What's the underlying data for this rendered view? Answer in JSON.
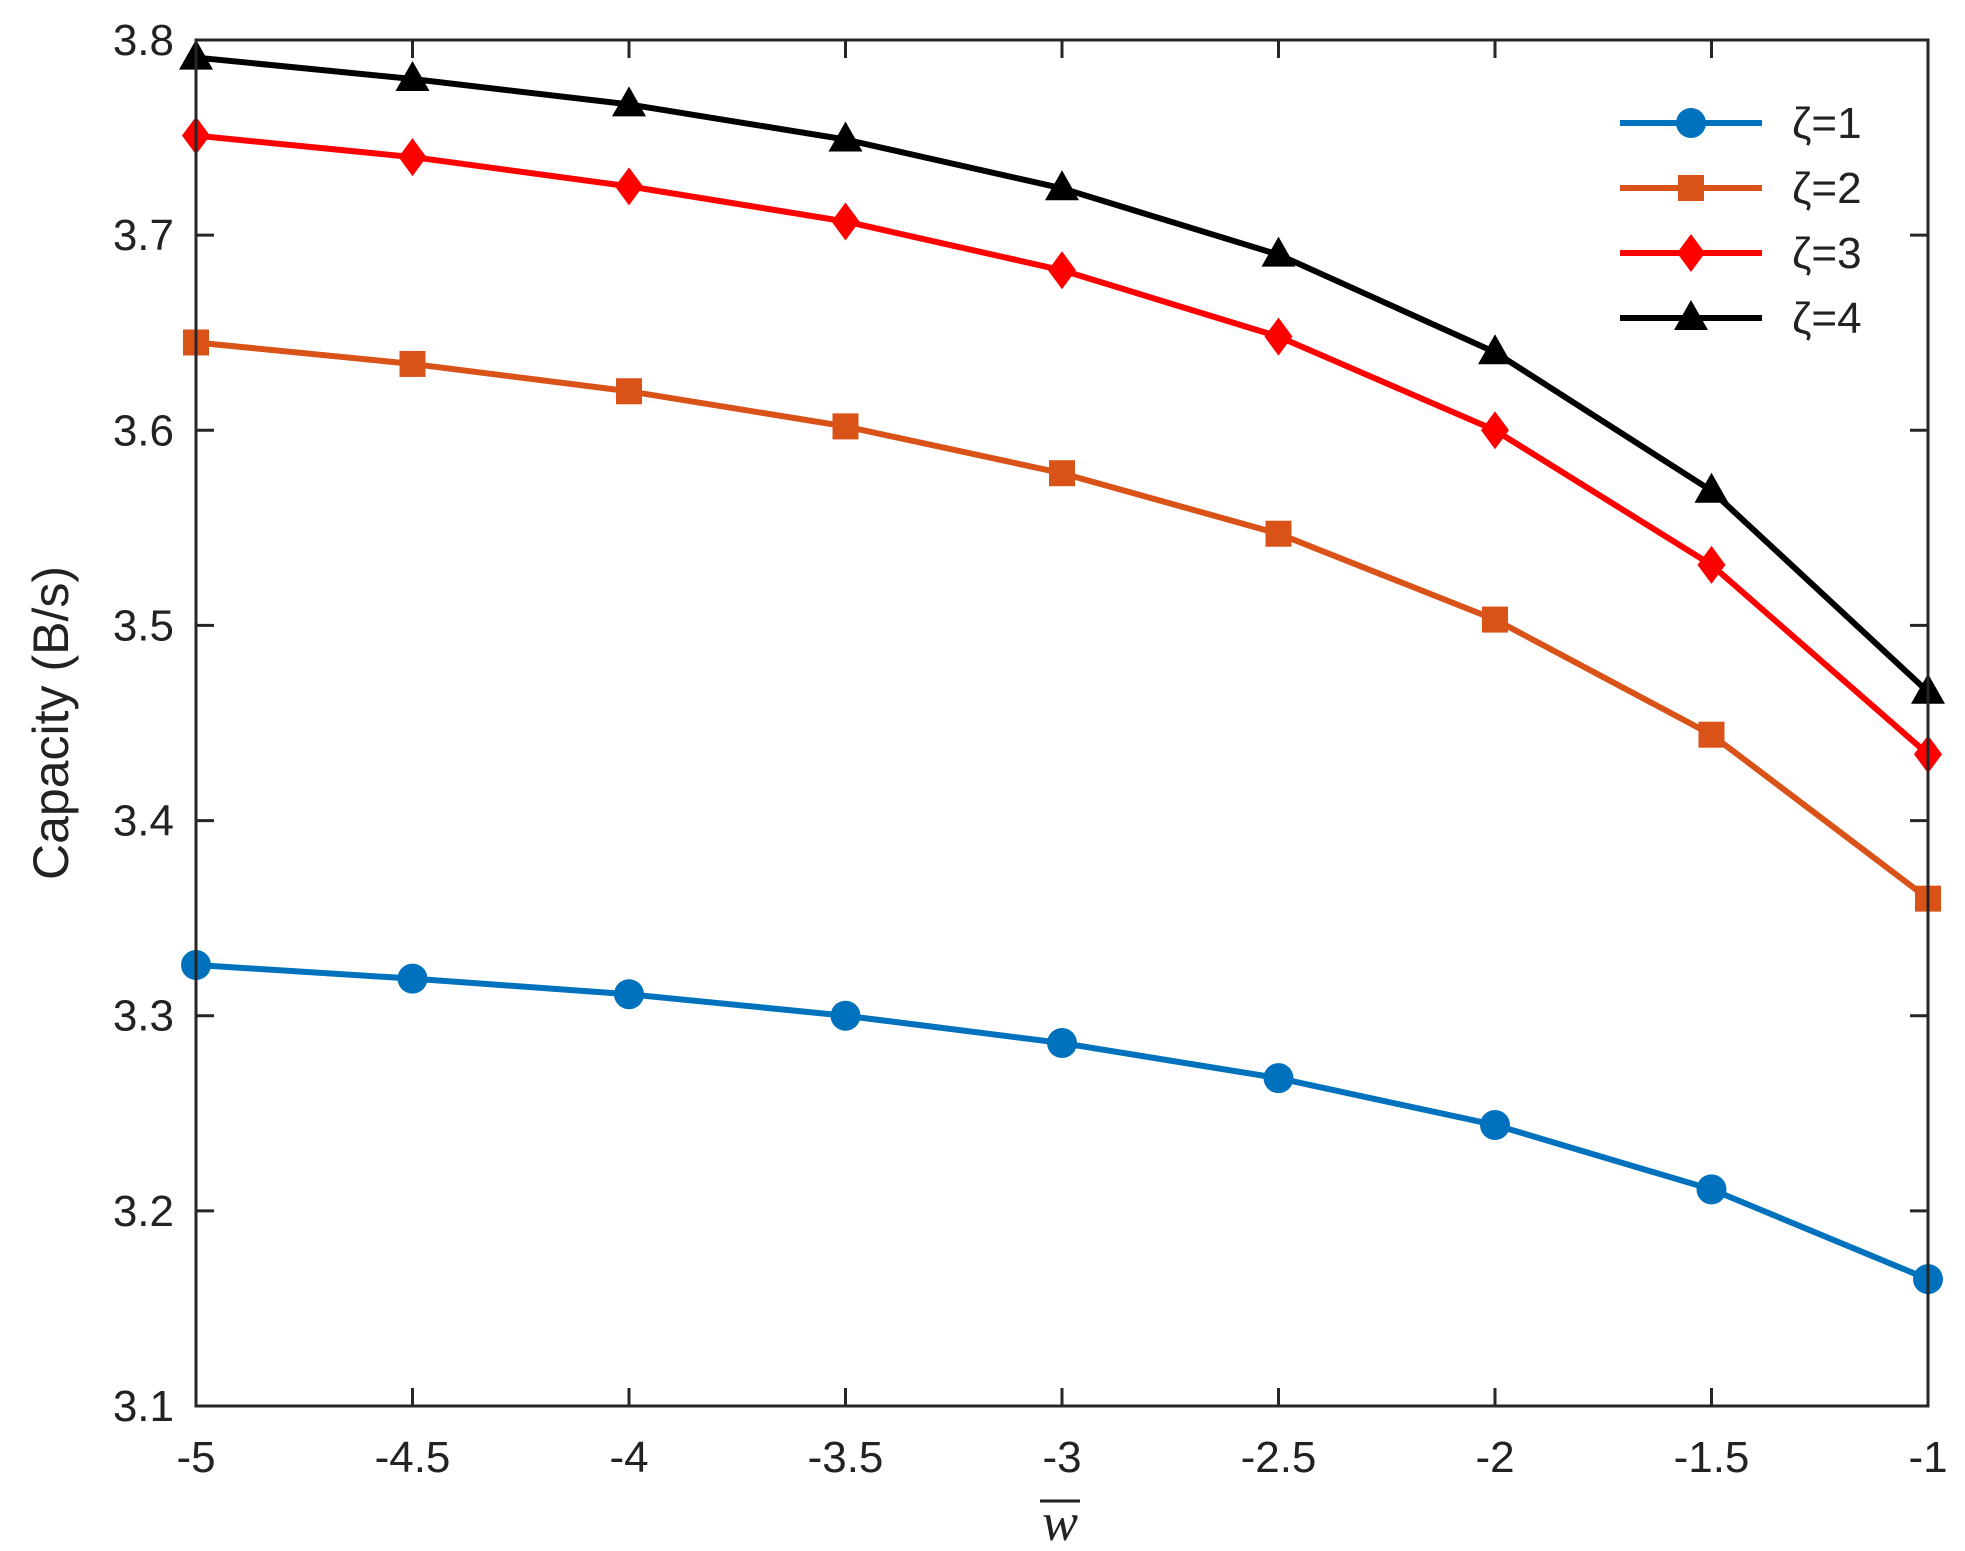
{
  "chart_data": {
    "type": "line",
    "x": [
      -5,
      -4.5,
      -4,
      -3.5,
      -3,
      -2.5,
      -2,
      -1.5,
      -1
    ],
    "xticks": [
      "-5",
      "-4.5",
      "-4",
      "-3.5",
      "-3",
      "-2.5",
      "-2",
      "-1.5",
      "-1"
    ],
    "yticks": [
      "3.1",
      "3.2",
      "3.3",
      "3.4",
      "3.5",
      "3.6",
      "3.7",
      "3.8"
    ],
    "xlim": [
      -5,
      -1
    ],
    "ylim": [
      3.1,
      3.8
    ],
    "xlabel": "w",
    "ylabel": "Capacity (B/s)",
    "grid": false,
    "legend_position": "top-right",
    "series": [
      {
        "name": "ζ=1",
        "color": "#0072BD",
        "marker": "circle",
        "values": [
          3.326,
          3.319,
          3.311,
          3.3,
          3.286,
          3.268,
          3.244,
          3.211,
          3.165
        ]
      },
      {
        "name": "ζ=2",
        "color": "#D95319",
        "marker": "square",
        "values": [
          3.645,
          3.634,
          3.62,
          3.602,
          3.578,
          3.547,
          3.503,
          3.444,
          3.36
        ]
      },
      {
        "name": "ζ=3",
        "color": "#FF0000",
        "marker": "diamond",
        "values": [
          3.751,
          3.74,
          3.725,
          3.707,
          3.682,
          3.648,
          3.6,
          3.531,
          3.434
        ]
      },
      {
        "name": "ζ=4",
        "color": "#000000",
        "marker": "triangle",
        "values": [
          3.791,
          3.78,
          3.767,
          3.749,
          3.724,
          3.69,
          3.64,
          3.569,
          3.466
        ]
      }
    ]
  }
}
